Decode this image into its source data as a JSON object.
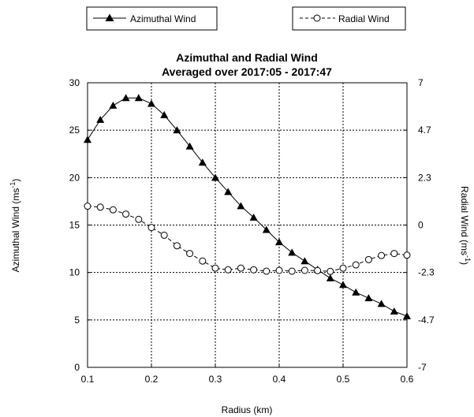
{
  "chart_data": {
    "type": "line",
    "title_line1": "Azimuthal and Radial Wind",
    "title_line2": "Averaged over 2017:05 - 2017:47",
    "xlabel": "Radius (km)",
    "ylabel_left": "Azimuthal Wind (ms",
    "ylabel_left_sup": "-1",
    "ylabel_left_end": ")",
    "ylabel_right": "Radial Wind (ms",
    "ylabel_right_sup": "-1",
    "ylabel_right_end": ")",
    "xlim": [
      0.1,
      0.6
    ],
    "ylim_left": [
      0,
      30
    ],
    "ylim_right": [
      -7,
      7
    ],
    "x_ticks": [
      "0.1",
      "0.2",
      "0.3",
      "0.4",
      "0.5",
      "0.6"
    ],
    "y_left_ticks": [
      "0",
      "5",
      "10",
      "15",
      "20",
      "25",
      "30"
    ],
    "y_right_ticks": [
      "-7",
      "-4.7",
      "-2.3",
      "0",
      "2.3",
      "4.7",
      "7"
    ],
    "grid": true,
    "legend_placement": "top",
    "series": [
      {
        "name": "Azimuthal Wind",
        "axis": "left",
        "marker": "filled-triangle",
        "line": "solid",
        "x": [
          0.1,
          0.12,
          0.14,
          0.16,
          0.18,
          0.2,
          0.22,
          0.24,
          0.26,
          0.28,
          0.3,
          0.32,
          0.34,
          0.36,
          0.38,
          0.4,
          0.42,
          0.44,
          0.46,
          0.48,
          0.5,
          0.52,
          0.54,
          0.56,
          0.58,
          0.6
        ],
        "values": [
          24.0,
          26.1,
          27.6,
          28.4,
          28.4,
          27.8,
          26.6,
          25.0,
          23.3,
          21.6,
          20.0,
          18.5,
          17.0,
          15.8,
          14.5,
          13.2,
          12.1,
          11.2,
          10.3,
          9.4,
          8.7,
          7.9,
          7.3,
          6.7,
          5.9,
          5.4
        ]
      },
      {
        "name": "Radial Wind",
        "axis": "right",
        "marker": "open-circle",
        "line": "dashed",
        "x": [
          0.1,
          0.12,
          0.14,
          0.16,
          0.18,
          0.2,
          0.22,
          0.24,
          0.26,
          0.28,
          0.3,
          0.32,
          0.34,
          0.36,
          0.38,
          0.4,
          0.42,
          0.44,
          0.46,
          0.48,
          0.5,
          0.52,
          0.54,
          0.56,
          0.58,
          0.6
        ],
        "values": [
          0.93,
          0.88,
          0.75,
          0.54,
          0.28,
          -0.12,
          -0.5,
          -1.02,
          -1.4,
          -1.77,
          -2.12,
          -2.2,
          -2.12,
          -2.2,
          -2.27,
          -2.23,
          -2.27,
          -2.23,
          -2.24,
          -2.28,
          -2.12,
          -1.96,
          -1.7,
          -1.5,
          -1.4,
          -1.48
        ]
      }
    ]
  }
}
